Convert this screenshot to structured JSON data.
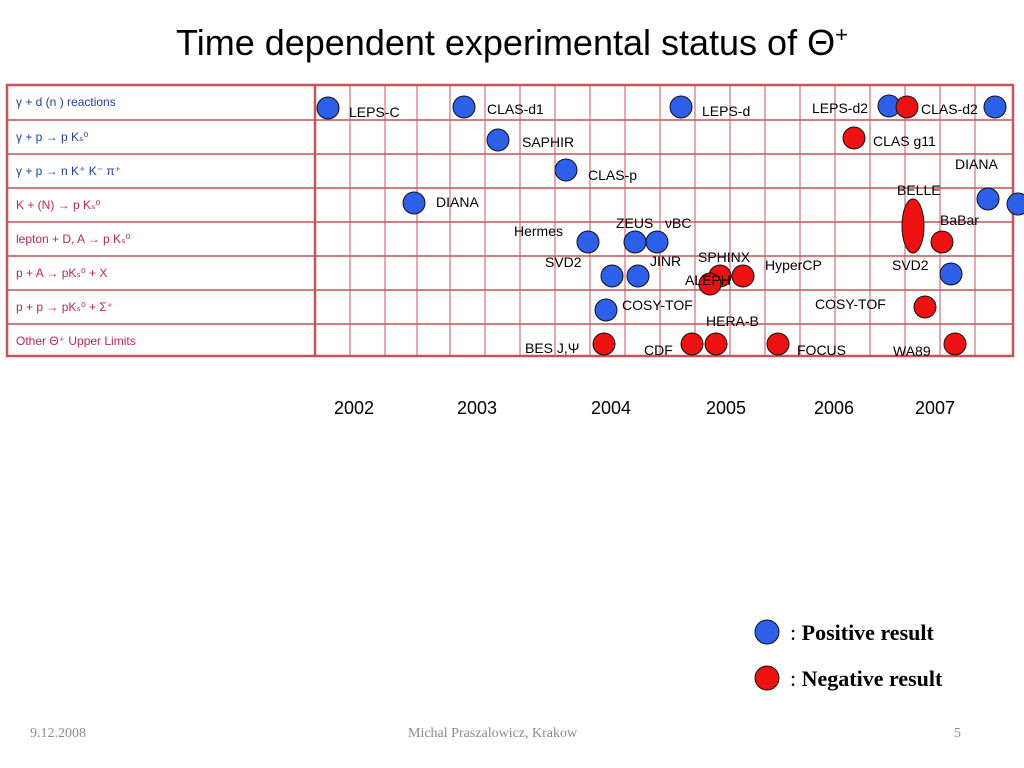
{
  "title": {
    "text": "Time dependent experimental status of Θ",
    "sup": "+"
  },
  "rows": [
    {
      "label": "γ +  d (n )  reactions",
      "color": "#1f3f9f"
    },
    {
      "label": "γ +  p  → p Kₛ⁰",
      "color": "#1f3f9f"
    },
    {
      "label": "γ +  p → n K⁺ K⁻ π⁺",
      "color": "#1f3f9f"
    },
    {
      "label": "K + (N) → p Kₛ⁰",
      "color": "#c0245a"
    },
    {
      "label": "lepton + D, A → p Kₛ⁰",
      "color": "#c0245a"
    },
    {
      "label": "p + A →  pKₛ⁰ + X",
      "color": "#c0245a"
    },
    {
      "label": "p + p →  pKₛ⁰ + Σ⁺",
      "color": "#c0245a"
    },
    {
      "label": "Other Θ⁺ Upper Limits",
      "color": "#c0245a"
    }
  ],
  "years": [
    "2002",
    "2003",
    "2004",
    "2005",
    "2006",
    "2007"
  ],
  "experiments": [
    {
      "name": "LEPS-C",
      "result": "positive"
    },
    {
      "name": "CLAS-d1",
      "result": "positive"
    },
    {
      "name": "LEPS-d",
      "result": "positive"
    },
    {
      "name": "LEPS-d2",
      "result": "positive"
    },
    {
      "name": "CLAS-d2",
      "result": "negative"
    },
    {
      "name": "SAPHIR",
      "result": "positive"
    },
    {
      "name": "CLAS g11",
      "result": "negative"
    },
    {
      "name": "CLAS-p",
      "result": "positive"
    },
    {
      "name": "DIANA",
      "result": "positive"
    },
    {
      "name": "DIANA",
      "result": "positive"
    },
    {
      "name": "BELLE",
      "result": "negative"
    },
    {
      "name": "Hermes",
      "result": "positive"
    },
    {
      "name": "ZEUS",
      "result": "positive"
    },
    {
      "name": "νBC",
      "result": "positive"
    },
    {
      "name": "BaBar",
      "result": "negative"
    },
    {
      "name": "SVD2",
      "result": "positive"
    },
    {
      "name": "JINR",
      "result": "positive"
    },
    {
      "name": "SPHINX",
      "result": "negative"
    },
    {
      "name": "ALEPH",
      "result": "negative"
    },
    {
      "name": "HyperCP",
      "result": "negative"
    },
    {
      "name": "SVD2",
      "result": "positive"
    },
    {
      "name": "COSY-TOF",
      "result": "positive"
    },
    {
      "name": "COSY-TOF",
      "result": "negative"
    },
    {
      "name": "HERA-B",
      "result": "negative"
    },
    {
      "name": "BES J,Ψ",
      "result": "negative"
    },
    {
      "name": "CDF",
      "result": "negative"
    },
    {
      "name": "FOCUS",
      "result": "negative"
    },
    {
      "name": "WA89",
      "result": "negative"
    }
  ],
  "legend": {
    "positive": {
      "text": "Positive result",
      "color": "#2e5fe8"
    },
    "negative": {
      "text": "Negative result",
      "color": "#ee1111"
    }
  },
  "colors": {
    "grid": "#c4555a",
    "positive": "#2e5fe8",
    "negative": "#ee1111"
  },
  "footer": {
    "date": "9.12.2008",
    "author": "Michal Praszalowicz, Krakow",
    "page": "5"
  }
}
